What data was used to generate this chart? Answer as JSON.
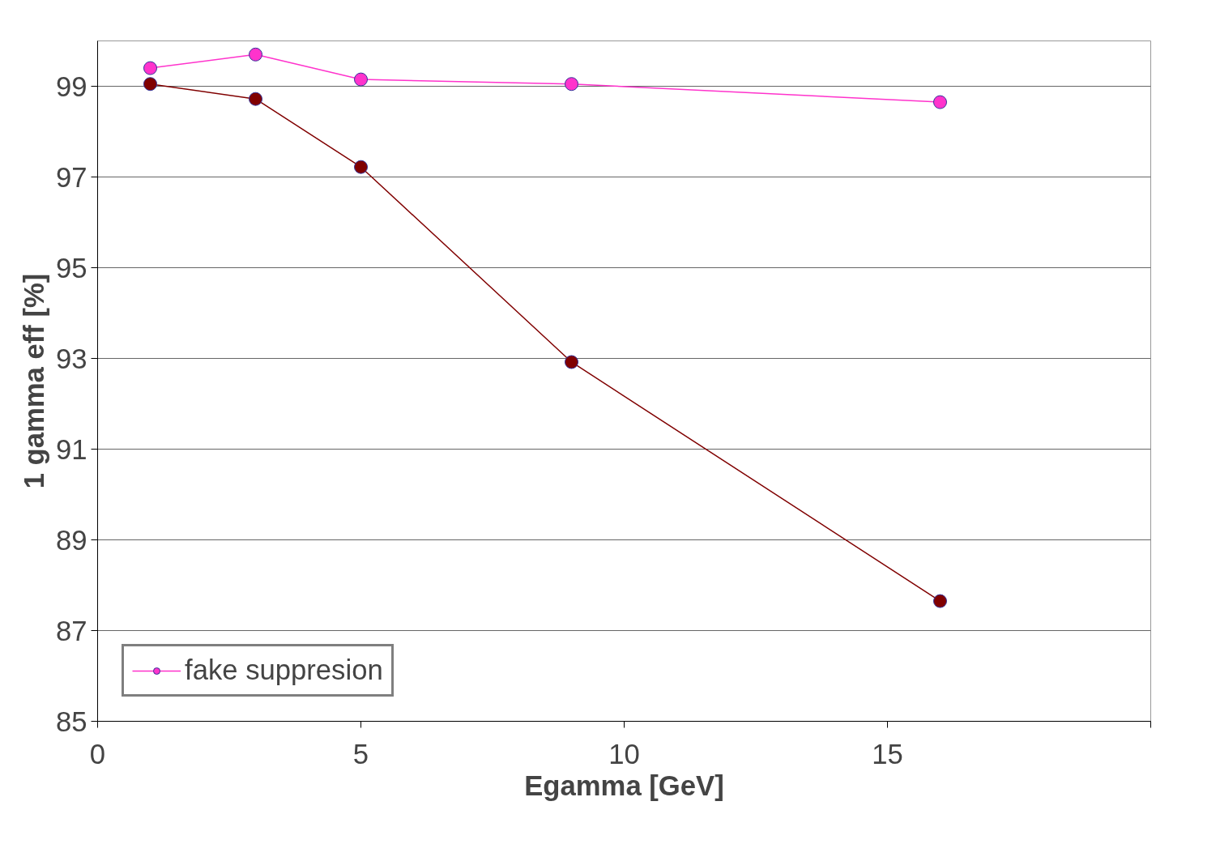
{
  "chart_data": {
    "type": "line",
    "xlabel": "Egamma [GeV]",
    "ylabel": "1 gamma eff [%]",
    "x": [
      1,
      3,
      5,
      9,
      16
    ],
    "series": [
      {
        "name": "fake suppresion",
        "color": "#ff33cc",
        "values": [
          99.4,
          99.7,
          99.15,
          99.05,
          98.65
        ]
      },
      {
        "color": "#800000",
        "values": [
          99.05,
          98.72,
          97.22,
          92.92,
          87.65
        ]
      }
    ],
    "xlim": [
      0,
      20
    ],
    "xticks": [
      0,
      5,
      10,
      15,
      {
        "value": 20,
        "label": null
      }
    ],
    "ylim": [
      85,
      100
    ],
    "yticks": [
      85,
      87,
      89,
      91,
      93,
      95,
      97,
      99
    ],
    "grid": "y",
    "legend": "bottom left",
    "marker": "circle",
    "line_style": "solid"
  }
}
